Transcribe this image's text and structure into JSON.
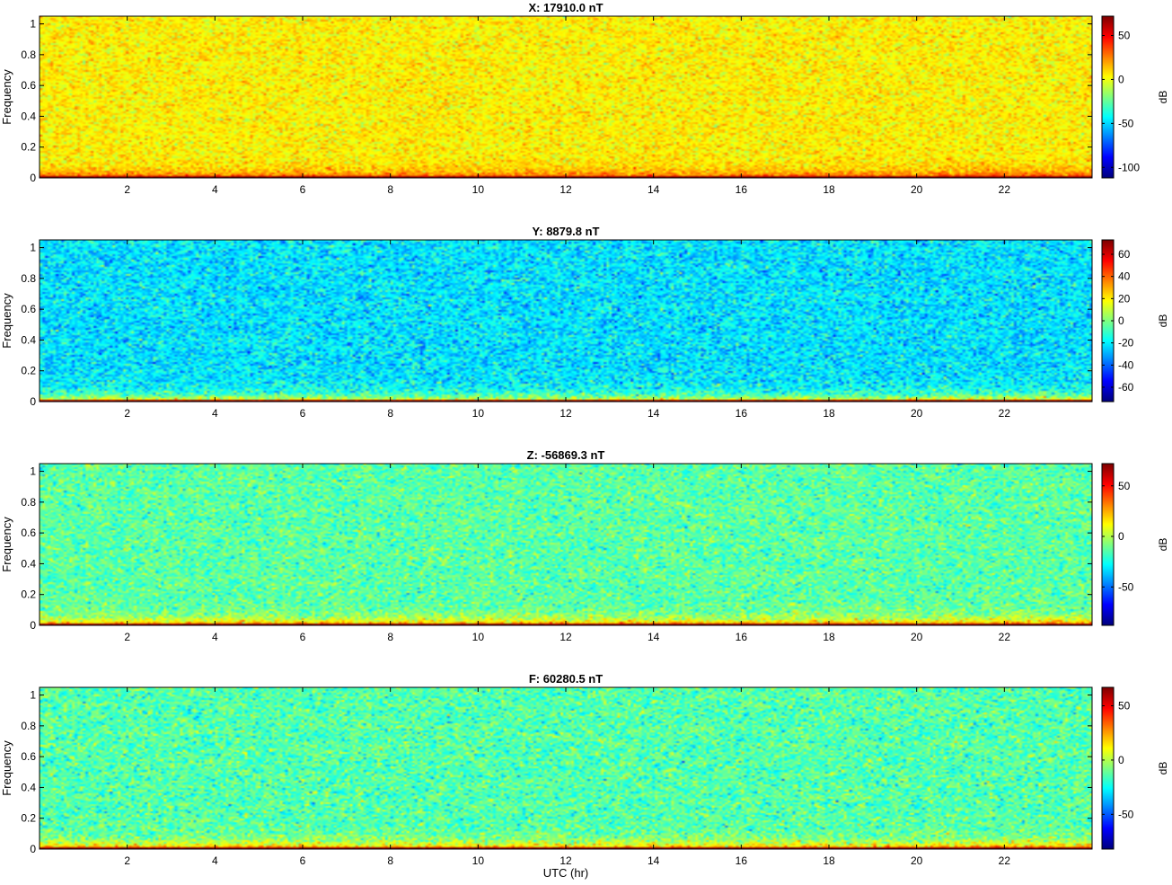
{
  "figure": {
    "xlabel": "UTC (hr)"
  },
  "chart_data": [
    {
      "type": "heatmap",
      "title": "X: 17910.0 nT",
      "ylabel": "Frequency",
      "colorbar_label": "dB",
      "xlim": [
        0,
        24
      ],
      "ylim": [
        0,
        1.05
      ],
      "x_ticks": [
        2,
        4,
        6,
        8,
        10,
        12,
        14,
        16,
        18,
        20,
        22
      ],
      "y_ticks": [
        0,
        0.2,
        0.4,
        0.6,
        0.8,
        1
      ],
      "clim": [
        -112,
        72
      ],
      "colorbar_ticks": [
        -100,
        -50,
        0,
        50
      ],
      "background_level_db": 5,
      "low_freq_level_db": 40,
      "noise_spread_db": 8
    },
    {
      "type": "heatmap",
      "title": "Y: 8879.8 nT",
      "ylabel": "Frequency",
      "colorbar_label": "dB",
      "xlim": [
        0,
        24
      ],
      "ylim": [
        0,
        1.05
      ],
      "x_ticks": [
        2,
        4,
        6,
        8,
        10,
        12,
        14,
        16,
        18,
        20,
        22
      ],
      "y_ticks": [
        0,
        0.2,
        0.4,
        0.6,
        0.8,
        1
      ],
      "clim": [
        -73,
        73
      ],
      "colorbar_ticks": [
        -60,
        -40,
        -20,
        0,
        20,
        40,
        60
      ],
      "background_level_db": -22,
      "low_freq_level_db": 30,
      "noise_spread_db": 9
    },
    {
      "type": "heatmap",
      "title": "Z: -56869.3 nT",
      "ylabel": "Frequency",
      "colorbar_label": "dB",
      "xlim": [
        0,
        24
      ],
      "ylim": [
        0,
        1.05
      ],
      "x_ticks": [
        2,
        4,
        6,
        8,
        10,
        12,
        14,
        16,
        18,
        20,
        22
      ],
      "y_ticks": [
        0,
        0.2,
        0.4,
        0.6,
        0.8,
        1
      ],
      "clim": [
        -88,
        72
      ],
      "colorbar_ticks": [
        -50,
        0,
        50
      ],
      "background_level_db": -14,
      "low_freq_level_db": 40,
      "noise_spread_db": 9
    },
    {
      "type": "heatmap",
      "title": "F: 60280.5 nT",
      "ylabel": "Frequency",
      "colorbar_label": "dB",
      "xlim": [
        0,
        24
      ],
      "ylim": [
        0,
        1.05
      ],
      "x_ticks": [
        2,
        4,
        6,
        8,
        10,
        12,
        14,
        16,
        18,
        20,
        22
      ],
      "y_ticks": [
        0,
        0.2,
        0.4,
        0.6,
        0.8,
        1
      ],
      "clim": [
        -82,
        67
      ],
      "colorbar_ticks": [
        -50,
        0,
        50
      ],
      "background_level_db": -14,
      "low_freq_level_db": 38,
      "noise_spread_db": 9
    }
  ]
}
